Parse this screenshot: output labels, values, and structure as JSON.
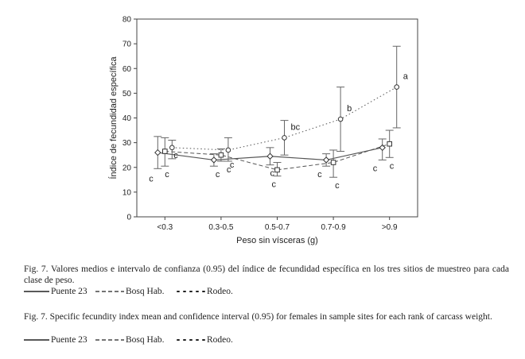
{
  "chart_data": {
    "type": "line",
    "xlabel": "Peso sin vísceras (g)",
    "ylabel": "Índice de fecundidad específica",
    "categories": [
      "<0.3",
      "0.3-0.5",
      "0.5-0.7",
      "0.7-0.9",
      ">0.9"
    ],
    "ylim": [
      0,
      80
    ],
    "yticks": [
      0,
      10,
      20,
      30,
      40,
      50,
      60,
      70,
      80
    ],
    "grid": false,
    "series": [
      {
        "name": "Puente 23",
        "style": "solid",
        "marker": "diamond",
        "values": [
          26,
          23,
          24.5,
          23,
          28
        ],
        "lower": [
          19.5,
          20.5,
          21,
          20.5,
          23
        ],
        "upper": [
          32.5,
          25.5,
          28,
          25.5,
          31.5
        ],
        "labels": [
          "c",
          "c",
          "c",
          "c",
          "c"
        ]
      },
      {
        "name": "Bosq Hab.",
        "style": "dashed",
        "marker": "square",
        "values": [
          26.5,
          25,
          19,
          22,
          29.5
        ],
        "lower": [
          20.5,
          22.5,
          16.5,
          16,
          24
        ],
        "upper": [
          32,
          27.5,
          22,
          27,
          35
        ],
        "labels": [
          "c",
          "c",
          "c",
          "c",
          "c"
        ]
      },
      {
        "name": "Rodeo.",
        "style": "dotted",
        "marker": "circle",
        "values": [
          28,
          27,
          32,
          39.5,
          52.5
        ],
        "lower": [
          23.5,
          22.5,
          25,
          26.5,
          36
        ],
        "upper": [
          31,
          32,
          39,
          52.5,
          69
        ],
        "labels": [
          "c",
          "c",
          "bc",
          "b",
          "a"
        ]
      }
    ]
  },
  "caption_es": "Fig. 7. Valores medios  e intervalo de confianza (0.95) del índice de fecundidad específica en los tres sitios de muestreo para cada clase de peso.",
  "caption_en": "Fig. 7. Specific fecundity index mean and confidence interval (0.95) for females in sample sites for each rank of carcass weight.",
  "legend": [
    "Puente 23",
    "Bosq Hab.",
    "Rodeo."
  ]
}
